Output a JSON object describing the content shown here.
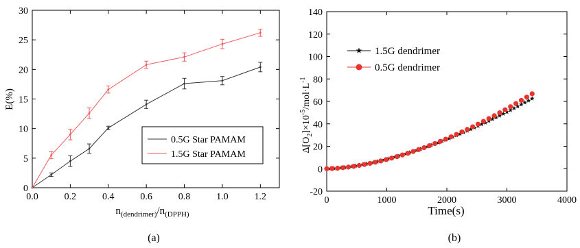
{
  "panel_labels": [
    "(a)",
    "(b)"
  ],
  "chart_data": [
    {
      "type": "line",
      "title": "",
      "xlabel_main": "n",
      "xlabel_sub1": "(dendrimer)",
      "xlabel_slash": "/",
      "xlabel_main2": "n",
      "xlabel_sub2": "(DPPH)",
      "ylabel": "E(%)",
      "xlim": [
        0.0,
        1.3
      ],
      "ylim": [
        0,
        30
      ],
      "xticks": [
        "0.0",
        "0.2",
        "0.4",
        "0.6",
        "0.8",
        "1.0",
        "1.2"
      ],
      "yticks": [
        "0",
        "5",
        "10",
        "15",
        "20",
        "25",
        "30"
      ],
      "grid": false,
      "legend_position": "lower-right",
      "series": [
        {
          "name": "0.5G Star PAMAM",
          "color": "#333333",
          "x": [
            0.0,
            0.1,
            0.2,
            0.3,
            0.4,
            0.6,
            0.8,
            1.0,
            1.2
          ],
          "y": [
            0.0,
            2.2,
            4.5,
            6.6,
            10.1,
            14.1,
            17.6,
            18.1,
            20.4
          ],
          "err": [
            0.0,
            0.3,
            0.9,
            0.8,
            0.3,
            0.7,
            0.9,
            0.7,
            0.8
          ]
        },
        {
          "name": "1.5G Star PAMAM",
          "color": "#ee5a5a",
          "x": [
            0.0,
            0.1,
            0.2,
            0.3,
            0.4,
            0.6,
            0.8,
            1.0,
            1.2
          ],
          "y": [
            0.0,
            5.5,
            9.0,
            12.6,
            16.6,
            20.8,
            22.1,
            24.3,
            26.2
          ],
          "err": [
            0.0,
            0.6,
            0.9,
            0.9,
            0.6,
            0.6,
            0.7,
            0.8,
            0.6
          ]
        }
      ]
    },
    {
      "type": "scatter",
      "title": "",
      "xlabel": "Time(s)",
      "ylabel_main": "Δ[O",
      "ylabel_sub": "2",
      "ylabel_rest": "]×10",
      "ylabel_sup1": "-5",
      "ylabel_unit": "/mol·L",
      "ylabel_sup2": "-1",
      "xlim": [
        0,
        4000
      ],
      "ylim": [
        -20,
        140
      ],
      "xticks": [
        "0",
        "1000",
        "2000",
        "3000",
        "4000"
      ],
      "yticks": [
        "-20",
        "0",
        "20",
        "40",
        "60",
        "80",
        "100",
        "120",
        "140"
      ],
      "grid": false,
      "legend_position": "top-left",
      "series": [
        {
          "name": "1.5G dendrimer",
          "color": "#111111",
          "marker": "star",
          "x_start": 0,
          "x_end": 3420,
          "step": 60,
          "max": 62.5,
          "exponent": 1.62
        },
        {
          "name": "0.5G dendrimer",
          "color": "#e8342c",
          "marker": "circle",
          "x_start": 0,
          "x_end": 3420,
          "step": 90,
          "max": 66.8,
          "exponent": 1.7
        }
      ]
    }
  ]
}
